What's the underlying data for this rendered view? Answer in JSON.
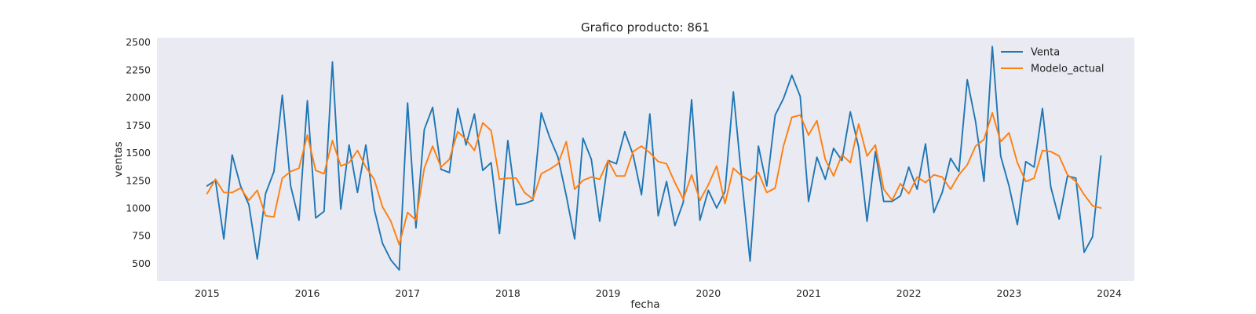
{
  "chart_data": {
    "type": "line",
    "title": "Grafico producto: 861",
    "xlabel": "fecha",
    "ylabel": "ventas",
    "x_start": "2015-01",
    "x_frequency": "monthly",
    "xlim": [
      "2014-07",
      "2024-04"
    ],
    "ylim": [
      340,
      2540
    ],
    "x_ticks": [
      "2015",
      "2016",
      "2017",
      "2018",
      "2019",
      "2020",
      "2021",
      "2022",
      "2023",
      "2024"
    ],
    "y_ticks": [
      500,
      750,
      1000,
      1250,
      1500,
      1750,
      2000,
      2250,
      2500
    ],
    "grid": false,
    "legend_position": "top-right",
    "plot_background": "#eaeaf2",
    "series": [
      {
        "name": "Venta",
        "color": "#1f77b4",
        "values": [
          1200,
          1250,
          720,
          1480,
          1200,
          1030,
          540,
          1130,
          1330,
          2020,
          1200,
          890,
          1970,
          910,
          970,
          2320,
          990,
          1570,
          1140,
          1570,
          990,
          680,
          530,
          440,
          1950,
          820,
          1710,
          1910,
          1350,
          1320,
          1900,
          1570,
          1850,
          1340,
          1410,
          770,
          1610,
          1030,
          1040,
          1070,
          1860,
          1640,
          1460,
          1110,
          720,
          1630,
          1440,
          880,
          1430,
          1400,
          1690,
          1480,
          1120,
          1850,
          930,
          1240,
          840,
          1050,
          1980,
          890,
          1160,
          1000,
          1150,
          2050,
          1260,
          520,
          1560,
          1200,
          1840,
          1990,
          2200,
          2010,
          1060,
          1460,
          1260,
          1540,
          1430,
          1870,
          1550,
          880,
          1510,
          1060,
          1060,
          1110,
          1370,
          1170,
          1580,
          960,
          1140,
          1450,
          1330,
          2160,
          1780,
          1240,
          2460,
          1470,
          1200,
          850,
          1420,
          1370,
          1900,
          1190,
          900,
          1290,
          1270,
          600,
          740,
          1470
        ]
      },
      {
        "name": "Modelo_actual",
        "color": "#ff7f0e",
        "values": [
          1130,
          1260,
          1140,
          1140,
          1180,
          1070,
          1160,
          930,
          920,
          1270,
          1330,
          1360,
          1660,
          1340,
          1310,
          1610,
          1380,
          1410,
          1520,
          1370,
          1260,
          1010,
          880,
          670,
          960,
          890,
          1360,
          1560,
          1370,
          1440,
          1690,
          1620,
          1520,
          1770,
          1700,
          1260,
          1270,
          1270,
          1140,
          1080,
          1310,
          1350,
          1400,
          1600,
          1170,
          1250,
          1280,
          1260,
          1430,
          1290,
          1290,
          1510,
          1560,
          1500,
          1420,
          1400,
          1230,
          1080,
          1300,
          1070,
          1210,
          1380,
          1040,
          1360,
          1290,
          1250,
          1320,
          1140,
          1180,
          1560,
          1820,
          1840,
          1660,
          1790,
          1440,
          1290,
          1480,
          1410,
          1760,
          1470,
          1570,
          1170,
          1070,
          1220,
          1130,
          1280,
          1230,
          1300,
          1280,
          1170,
          1300,
          1390,
          1560,
          1620,
          1860,
          1600,
          1680,
          1410,
          1240,
          1270,
          1520,
          1510,
          1470,
          1300,
          1240,
          1120,
          1020,
          1000
        ]
      }
    ]
  }
}
